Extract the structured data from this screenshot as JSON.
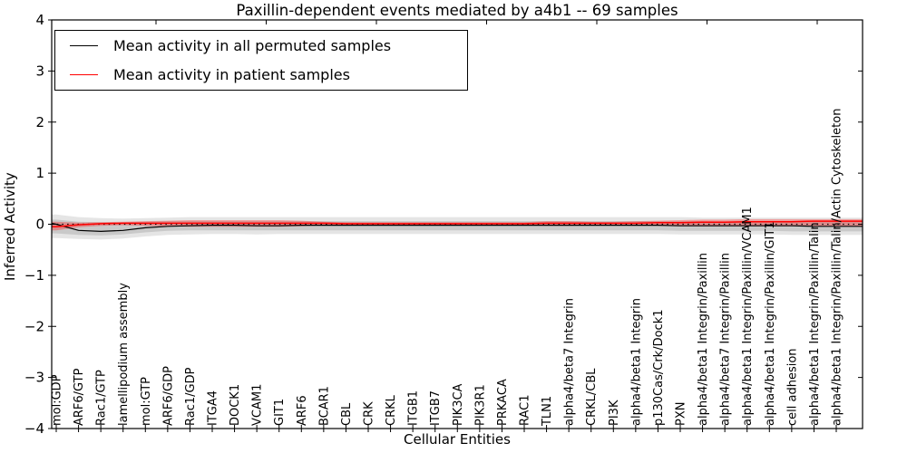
{
  "title": "Paxillin-dependent events mediated by a4b1 -- 69 samples",
  "axes": {
    "xlabel": "Cellular Entities",
    "ylabel": "Inferred Activity",
    "ytick_labels": [
      "4",
      "3",
      "2",
      "1",
      "0",
      "−1",
      "−2",
      "−3",
      "−4"
    ],
    "yticks": [
      4,
      3,
      2,
      1,
      0,
      -1,
      -2,
      -3,
      -4
    ]
  },
  "legend": {
    "entries": [
      {
        "label": "Mean activity in all permuted samples",
        "color": "#000000"
      },
      {
        "label": "Mean activity in patient samples",
        "color": "#ff0000"
      }
    ]
  },
  "chart_data": {
    "type": "line",
    "title": "Paxillin-dependent events mediated by a4b1 -- 69 samples",
    "xlabel": "Cellular Entities",
    "ylabel": "Inferred Activity",
    "ylim": [
      -4,
      4
    ],
    "grid": false,
    "legend_position": "upper left",
    "zero_reference_line": {
      "style": "dotted",
      "color": "#000000",
      "y": 0
    },
    "categories": [
      "mol:GDP",
      "ARF6/GTP",
      "Rac1/GTP",
      "lamellipodium assembly",
      "mol:GTP",
      "ARF6/GDP",
      "Rac1/GDP",
      "ITGA4",
      "DOCK1",
      "VCAM1",
      "GIT1",
      "ARF6",
      "BCAR1",
      "CBL",
      "CRK",
      "CRKL",
      "ITGB1",
      "ITGB7",
      "PIK3CA",
      "PIK3R1",
      "PRKACA",
      "RAC1",
      "TLN1",
      "alpha4/beta7 Integrin",
      "CRKL/CBL",
      "PI3K",
      "alpha4/beta1 Integrin",
      "p130Cas/Crk/Dock1",
      "PXN",
      "alpha4/beta1 Integrin/Paxillin",
      "alpha4/beta7 Integrin/Paxillin",
      "alpha4/beta1 Integrin/Paxillin/VCAM1",
      "alpha4/beta1 Integrin/Paxillin/GIT1",
      "cell adhesion",
      "alpha4/beta1 Integrin/Paxillin/Talin",
      "alpha4/beta1 Integrin/Paxillin/Talin/Actin Cytoskeleton"
    ],
    "series": [
      {
        "name": "Mean activity in all permuted samples",
        "color": "#000000",
        "width": 1.2,
        "edge_value": 0.02,
        "values": [
          0.0,
          -0.12,
          -0.14,
          -0.12,
          -0.07,
          -0.04,
          -0.03,
          -0.02,
          -0.02,
          -0.03,
          -0.03,
          -0.02,
          -0.02,
          -0.02,
          -0.02,
          -0.02,
          -0.02,
          -0.02,
          -0.02,
          -0.02,
          -0.02,
          -0.02,
          -0.02,
          -0.02,
          -0.02,
          -0.02,
          -0.02,
          -0.02,
          -0.03,
          -0.03,
          -0.03,
          -0.03,
          -0.03,
          -0.03,
          -0.04,
          -0.04
        ]
      },
      {
        "name": "Mean activity in patient samples",
        "color": "#ff0000",
        "width": 1.5,
        "edge_value": -0.05,
        "values": [
          -0.05,
          -0.01,
          0.01,
          0.02,
          0.02,
          0.02,
          0.02,
          0.02,
          0.02,
          0.02,
          0.02,
          0.02,
          0.02,
          0.01,
          0.01,
          0.01,
          0.01,
          0.01,
          0.01,
          0.01,
          0.01,
          0.01,
          0.02,
          0.02,
          0.02,
          0.02,
          0.02,
          0.03,
          0.03,
          0.04,
          0.04,
          0.05,
          0.05,
          0.05,
          0.06,
          0.06
        ]
      }
    ],
    "bands": [
      {
        "name": "permuted-outer-band",
        "fill": "rgba(0,0,0,0.10)",
        "upper": [
          0.19,
          0.14,
          0.12,
          0.11,
          0.12,
          0.13,
          0.14,
          0.14,
          0.14,
          0.14,
          0.14,
          0.14,
          0.14,
          0.14,
          0.14,
          0.14,
          0.14,
          0.14,
          0.14,
          0.14,
          0.14,
          0.14,
          0.14,
          0.14,
          0.14,
          0.14,
          0.14,
          0.14,
          0.14,
          0.13,
          0.13,
          0.13,
          0.13,
          0.13,
          0.13,
          0.13
        ],
        "lower": [
          -0.27,
          -0.29,
          -0.3,
          -0.28,
          -0.24,
          -0.21,
          -0.2,
          -0.19,
          -0.19,
          -0.2,
          -0.19,
          -0.19,
          -0.19,
          -0.19,
          -0.19,
          -0.19,
          -0.19,
          -0.19,
          -0.19,
          -0.19,
          -0.19,
          -0.19,
          -0.19,
          -0.19,
          -0.19,
          -0.19,
          -0.19,
          -0.19,
          -0.2,
          -0.2,
          -0.2,
          -0.2,
          -0.2,
          -0.21,
          -0.21,
          -0.21
        ]
      },
      {
        "name": "permuted-inner-band",
        "fill": "rgba(0,0,0,0.12)",
        "upper": [
          0.09,
          0.05,
          0.04,
          0.04,
          0.05,
          0.06,
          0.06,
          0.06,
          0.06,
          0.06,
          0.06,
          0.06,
          0.06,
          0.06,
          0.06,
          0.06,
          0.06,
          0.06,
          0.06,
          0.06,
          0.06,
          0.06,
          0.06,
          0.06,
          0.06,
          0.06,
          0.06,
          0.06,
          0.06,
          0.06,
          0.05,
          0.05,
          0.05,
          0.05,
          0.05,
          0.05
        ],
        "lower": [
          -0.18,
          -0.21,
          -0.22,
          -0.2,
          -0.16,
          -0.13,
          -0.12,
          -0.12,
          -0.12,
          -0.12,
          -0.12,
          -0.12,
          -0.12,
          -0.12,
          -0.12,
          -0.12,
          -0.12,
          -0.12,
          -0.12,
          -0.12,
          -0.12,
          -0.12,
          -0.12,
          -0.12,
          -0.12,
          -0.12,
          -0.12,
          -0.12,
          -0.13,
          -0.13,
          -0.13,
          -0.13,
          -0.13,
          -0.14,
          -0.14,
          -0.14
        ]
      },
      {
        "name": "patient-band",
        "fill": "rgba(255,0,0,0.30)",
        "upper": [
          0.05,
          0.03,
          0.04,
          0.05,
          0.06,
          0.07,
          0.08,
          0.08,
          0.08,
          0.08,
          0.08,
          0.07,
          0.05,
          0.04,
          0.04,
          0.04,
          0.04,
          0.04,
          0.04,
          0.04,
          0.04,
          0.04,
          0.06,
          0.06,
          0.05,
          0.05,
          0.06,
          0.07,
          0.08,
          0.09,
          0.09,
          0.1,
          0.1,
          0.1,
          0.1,
          0.1
        ],
        "lower": [
          -0.12,
          -0.06,
          -0.03,
          -0.02,
          -0.03,
          -0.04,
          -0.05,
          -0.05,
          -0.05,
          -0.05,
          -0.05,
          -0.04,
          -0.02,
          -0.02,
          -0.02,
          -0.02,
          -0.02,
          -0.02,
          -0.02,
          -0.02,
          -0.02,
          -0.02,
          -0.03,
          -0.03,
          -0.02,
          -0.02,
          -0.03,
          -0.03,
          -0.04,
          -0.04,
          -0.04,
          -0.04,
          -0.04,
          -0.04,
          -0.04,
          -0.04
        ]
      }
    ]
  },
  "colors": {
    "background": "#ffffff",
    "axis": "#000000",
    "permuted_line": "#000000",
    "patient_line": "#ff0000"
  }
}
